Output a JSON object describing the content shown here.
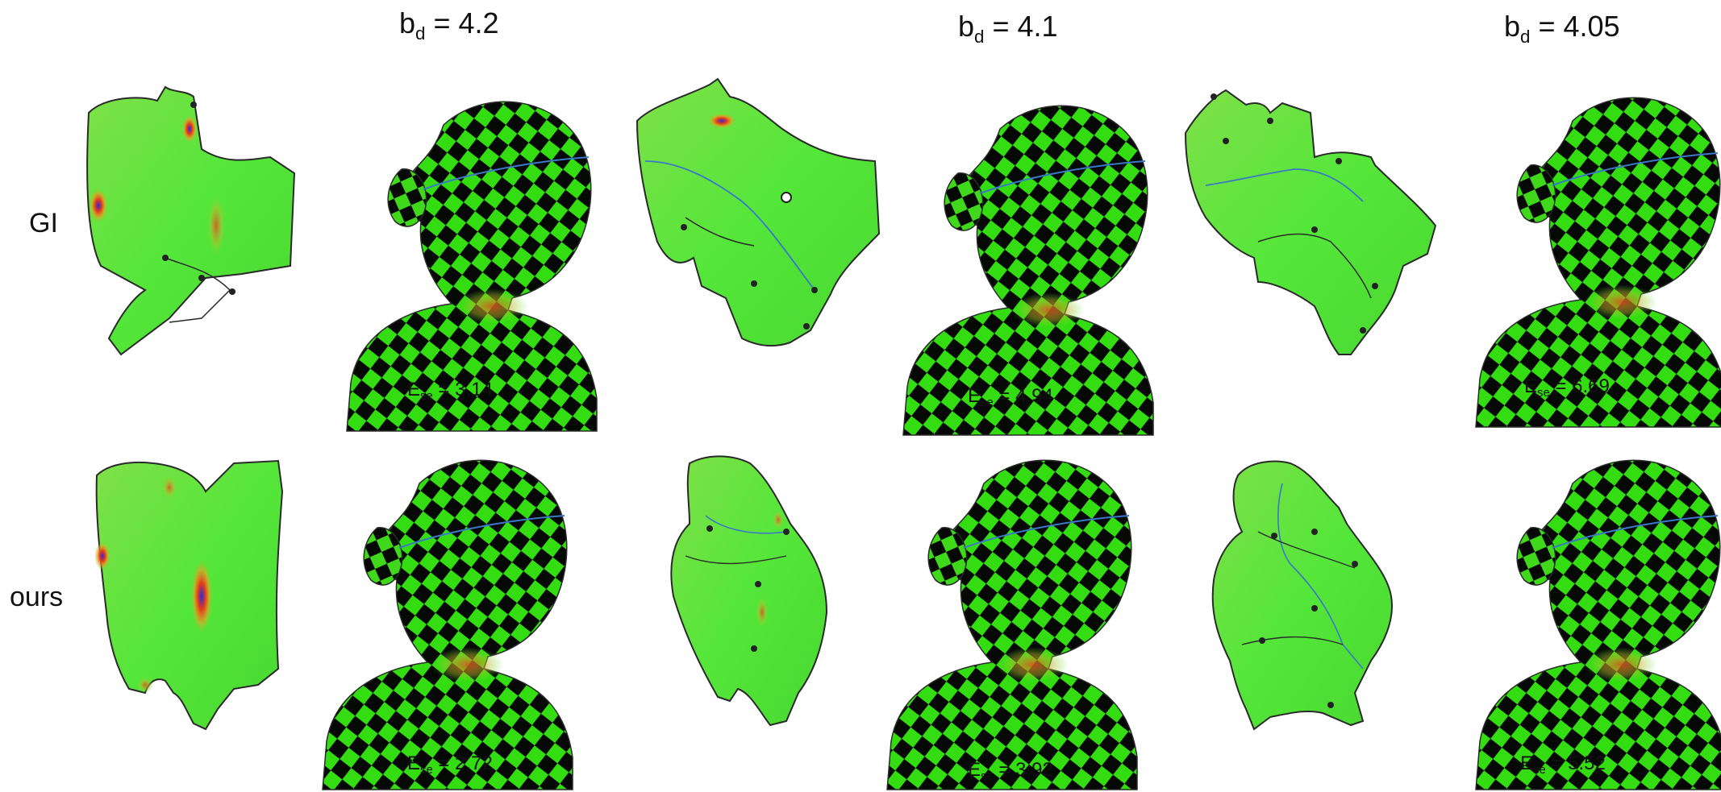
{
  "columns": [
    {
      "title_sym": "b",
      "title_sub": "d",
      "title_eq": " = ",
      "title_val": "4.2"
    },
    {
      "title_sym": "b",
      "title_sub": "d",
      "title_eq": " = ",
      "title_val": "4.1"
    },
    {
      "title_sym": "b",
      "title_sub": "d",
      "title_eq": " = ",
      "title_val": "4.05"
    }
  ],
  "rows": [
    {
      "label": "GI",
      "errors": [
        {
          "sym": "E",
          "sub": "se",
          "eq": " = ",
          "val": "3.14"
        },
        {
          "sym": "E",
          "sub": "se",
          "eq": " = ",
          "val": "4.94"
        },
        {
          "sym": "E",
          "sub": "se",
          "eq": " = ",
          "val": "6.69"
        }
      ]
    },
    {
      "label": "ours",
      "errors": [
        {
          "sym": "E",
          "sub": "se",
          "eq": " = ",
          "val": "2.72"
        },
        {
          "sym": "E",
          "sub": "se",
          "eq": " = ",
          "val": "3.92"
        },
        {
          "sym": "E",
          "sub": "se",
          "eq": " = ",
          "val": "5.52"
        }
      ]
    }
  ],
  "colors": {
    "checker_light": "#33dd11",
    "checker_dark": "#050805",
    "map_green": "#55e63a",
    "hot": "#e83a1a",
    "cold": "#2a2ad8",
    "seam": "#3a78c8",
    "outline": "#2a2a2a"
  }
}
